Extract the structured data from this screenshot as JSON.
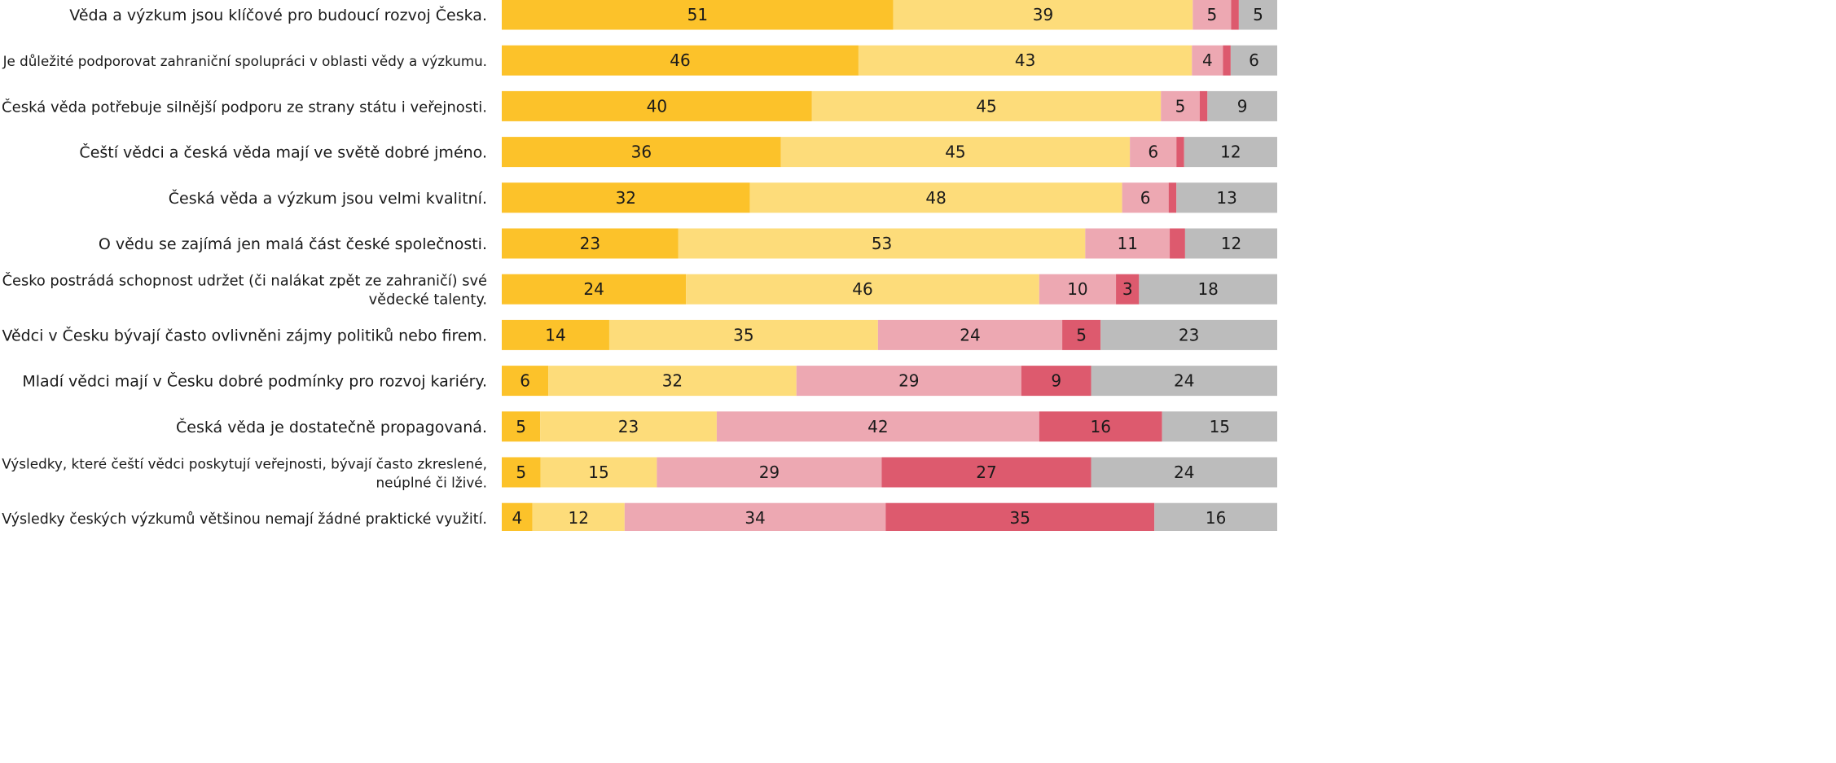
{
  "chart_data": {
    "type": "bar",
    "orientation": "horizontal",
    "stacked": true,
    "title": "",
    "xlabel": "",
    "ylabel": "",
    "legend": "none",
    "grid": false,
    "xlim": [
      0,
      100
    ],
    "categories": [
      "Věda a výzkum jsou klíčové pro budoucí rozvoj Česka.",
      "Je důležité podporovat zahraniční spolupráci v oblasti vědy a výzkumu.",
      "Česká věda potřebuje silnější podporu ze strany státu i veřejnosti.",
      "Čeští vědci a česká věda mají ve světě dobré jméno.",
      "Česká věda a výzkum jsou velmi kvalitní.",
      "O vědu se zajímá jen malá část české společnosti.",
      "Česko postrádá schopnost udržet (či nalákat zpět ze zahraničí) své vědecké talenty.",
      "Vědci v Česku bývají často ovlivněni zájmy politiků nebo firem.",
      "Mladí vědci mají v Česku dobré podmínky pro rozvoj kariéry.",
      "Česká věda je dostatečně propagovaná.",
      "Výsledky, které čeští vědci poskytují veřejnosti, bývají často zkreslené, neúplné či lživé.",
      "Výsledky českých výzkumů většinou nemají žádné praktické využití."
    ],
    "category_lines": [
      [
        "Věda a výzkum jsou klíčové pro budoucí rozvoj Česka."
      ],
      [
        "Je důležité podporovat zahraniční spolupráci v oblasti vědy a výzkumu."
      ],
      [
        "Česká věda potřebuje silnější podporu ze strany státu i veřejnosti."
      ],
      [
        "Čeští vědci a česká věda mají ve světě dobré jméno."
      ],
      [
        "Česká věda a výzkum jsou velmi kvalitní."
      ],
      [
        "O vědu se zajímá jen malá část české společnosti."
      ],
      [
        "Česko postrádá schopnost udržet (či nalákat zpět ze zahraničí) své",
        "vědecké talenty."
      ],
      [
        "Vědci v Česku bývají často ovlivněni zájmy politiků nebo firem."
      ],
      [
        "Mladí vědci mají v Česku dobré podmínky pro rozvoj kariéry."
      ],
      [
        "Česká věda je dostatečně propagovaná."
      ],
      [
        "Výsledky, které čeští vědci poskytují veřejnosti, bývají často zkreslené,",
        "neúplné či lživé."
      ],
      [
        "Výsledky českých výzkumů většinou nemají žádné praktické využití."
      ]
    ],
    "series": [
      {
        "color": "#fcc22a",
        "values": [
          51,
          46,
          40,
          36,
          32,
          23,
          24,
          14,
          6,
          5,
          5,
          4
        ]
      },
      {
        "color": "#fddc7a",
        "values": [
          39,
          43,
          45,
          45,
          48,
          53,
          46,
          35,
          32,
          23,
          15,
          12
        ]
      },
      {
        "color": "#eda8b2",
        "values": [
          5,
          4,
          5,
          6,
          6,
          11,
          10,
          24,
          29,
          42,
          29,
          34
        ]
      },
      {
        "color": "#dd5a6e",
        "values": [
          1,
          1,
          1,
          1,
          1,
          2,
          3,
          5,
          9,
          16,
          27,
          35
        ]
      },
      {
        "color": "#bcbcbc",
        "values": [
          5,
          6,
          9,
          12,
          13,
          12,
          18,
          23,
          24,
          15,
          24,
          16
        ]
      }
    ],
    "value_labels": [
      [
        "51",
        "39",
        "5",
        "",
        "5"
      ],
      [
        "46",
        "43",
        "4",
        "",
        "6"
      ],
      [
        "40",
        "45",
        "5",
        "",
        "9"
      ],
      [
        "36",
        "45",
        "6",
        "",
        "12"
      ],
      [
        "32",
        "48",
        "6",
        "",
        "13"
      ],
      [
        "23",
        "53",
        "11",
        "",
        "12"
      ],
      [
        "24",
        "46",
        "10",
        "3",
        "18"
      ],
      [
        "14",
        "35",
        "24",
        "5",
        "23"
      ],
      [
        "6",
        "32",
        "29",
        "9",
        "24"
      ],
      [
        "5",
        "23",
        "42",
        "16",
        "15"
      ],
      [
        "5",
        "15",
        "29",
        "27",
        "24"
      ],
      [
        "4",
        "12",
        "34",
        "35",
        "16"
      ]
    ]
  }
}
